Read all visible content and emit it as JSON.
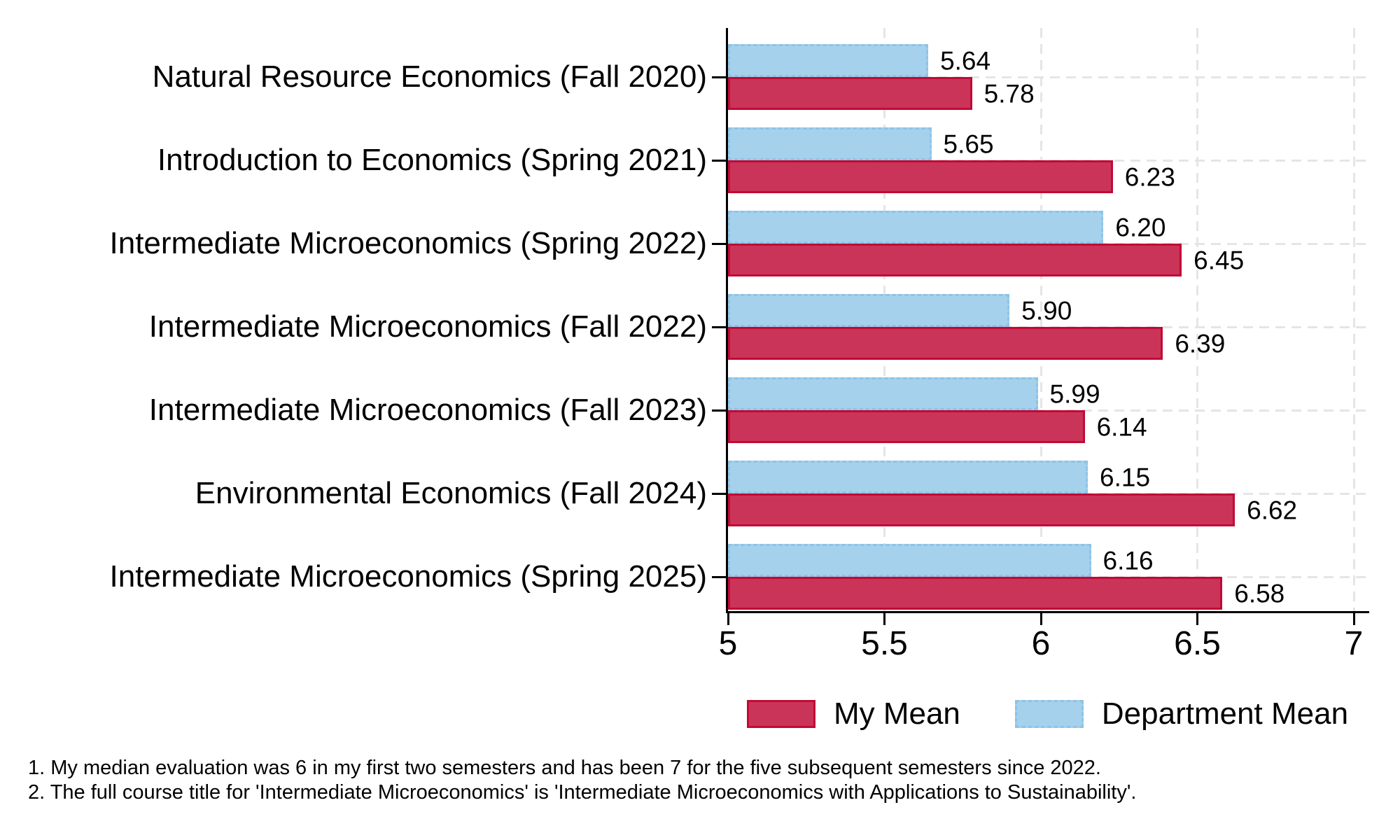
{
  "chart_data": {
    "type": "bar",
    "orientation": "horizontal",
    "title": "",
    "xlabel": "",
    "ylabel": "",
    "xlim": [
      5,
      7
    ],
    "x_ticks": [
      "5",
      "5.5",
      "6",
      "6.5",
      "7"
    ],
    "x_tick_values": [
      5,
      5.5,
      6,
      6.5,
      7
    ],
    "grid": "dashed light-gray vertical and horizontal",
    "legend_position": "bottom",
    "categories": [
      "Natural Resource Economics (Fall 2020)",
      "Introduction to Economics (Spring 2021)",
      "Intermediate Microeconomics (Spring 2022)",
      "Intermediate Microeconomics (Fall 2022)",
      "Intermediate Microeconomics (Fall 2023)",
      "Environmental Economics (Fall 2024)",
      "Intermediate Microeconomics (Spring 2025)"
    ],
    "series": [
      {
        "name": "Department Mean",
        "position_in_group": "top",
        "fill_color": "#a6d1ec",
        "border_color": "#8fc3e6",
        "border_style": "dashed",
        "values": [
          5.64,
          5.65,
          6.2,
          5.9,
          5.99,
          6.15,
          6.16
        ],
        "labels": [
          "5.64",
          "5.65",
          "6.20",
          "5.90",
          "5.99",
          "6.15",
          "6.16"
        ]
      },
      {
        "name": "My Mean",
        "position_in_group": "bottom",
        "fill_color": "#cb3459",
        "border_color": "#c00a35",
        "border_style": "solid",
        "values": [
          5.78,
          6.23,
          6.45,
          6.39,
          6.14,
          6.62,
          6.58
        ],
        "labels": [
          "5.78",
          "6.23",
          "6.45",
          "6.39",
          "6.14",
          "6.62",
          "6.58"
        ]
      }
    ]
  },
  "legend": {
    "items": [
      {
        "label": "My Mean",
        "color": "#cb3459"
      },
      {
        "label": "Department Mean",
        "color": "#a6d1ec"
      }
    ]
  },
  "notes": {
    "line1": "1. My median evaluation was 6 in my first two semesters and has been 7 for the five subsequent semesters since 2022.",
    "line2": "2. The full course title for 'Intermediate Microeconomics' is 'Intermediate Microeconomics with Applications to Sustainability'."
  }
}
